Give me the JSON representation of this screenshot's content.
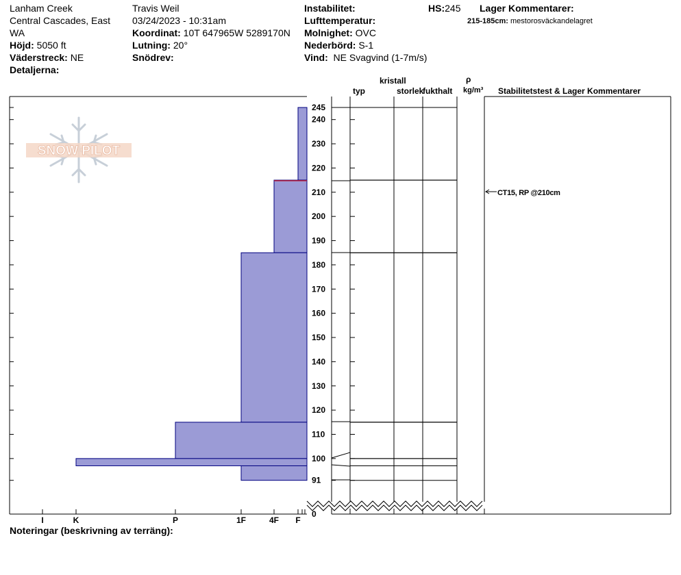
{
  "header": {
    "location_line1": "Lanham Creek",
    "location_line2": "Central Cascades, East",
    "location_line3": "WA",
    "elevation_label": "Höjd:",
    "elevation_value": "5050 ft",
    "aspect_label": "Väderstreck:",
    "aspect_value": "NE",
    "details_label": "Detaljerna:",
    "observer": "Travis  Weil",
    "datetime": "03/24/2023 - 10:31am",
    "coord_label": "Koordinat:",
    "coord_value": "10T 647965W 5289170N",
    "slope_label": "Lutning:",
    "slope_value": "20°",
    "drift_label": "Snödrev:",
    "instability_label": "Instabilitet:",
    "airtemp_label": "Lufttemperatur:",
    "cloud_label": "Molnighet:",
    "cloud_value": "OVC",
    "precip_label": "Nederbörd:",
    "precip_value": "S-1",
    "wind_label": "Vind:",
    "wind_value": "NE Svagvind (1-7m/s)",
    "hs_label": "HS:",
    "hs_value": "245",
    "layer_comments_title": "Lager Kommentarer:",
    "layer_comment_range": "215-185cm:",
    "layer_comment_text": "mestorosväckandelagret"
  },
  "columns": {
    "crystal": "kristall",
    "type": "typ",
    "size": "storlek",
    "moisture": "fukthalt",
    "rho": "ρ",
    "density_unit": "kg/m³",
    "stability": "Stabilitetstest & Lager Kommentarer"
  },
  "logo_text": "SNOW PILOT",
  "test_annotation": "CT15, RP @210cm",
  "notes_label": "Noteringar (beskrivning av terräng):",
  "hardness_labels": [
    "I",
    "K",
    "P",
    "1F",
    "4F",
    "F"
  ],
  "axis_ticks": [
    "245",
    "240",
    "230",
    "220",
    "210",
    "200",
    "190",
    "180",
    "170",
    "160",
    "150",
    "140",
    "130",
    "120",
    "110",
    "100",
    "91",
    "0"
  ],
  "chart_data": {
    "type": "bar",
    "title": "",
    "xlabel": "",
    "ylabel": "",
    "y_ticks": [
      245,
      240,
      230,
      220,
      210,
      200,
      190,
      180,
      170,
      160,
      150,
      140,
      130,
      120,
      110,
      100,
      91,
      0
    ],
    "hardness_scale": [
      "I",
      "K",
      "P",
      "1F",
      "4F",
      "F"
    ],
    "layers": [
      {
        "top": 245,
        "bottom": 215,
        "hardness": "F"
      },
      {
        "top": 215,
        "bottom": 185,
        "hardness": "4F"
      },
      {
        "top": 185,
        "bottom": 115,
        "hardness": "1F"
      },
      {
        "top": 115,
        "bottom": 100,
        "hardness": "P"
      },
      {
        "top": 100,
        "bottom": 97,
        "hardness": "K"
      },
      {
        "top": 97,
        "bottom": 91,
        "hardness": "1F"
      }
    ],
    "fill_color": "#9b9bd6",
    "edge_color": "#00007f"
  }
}
